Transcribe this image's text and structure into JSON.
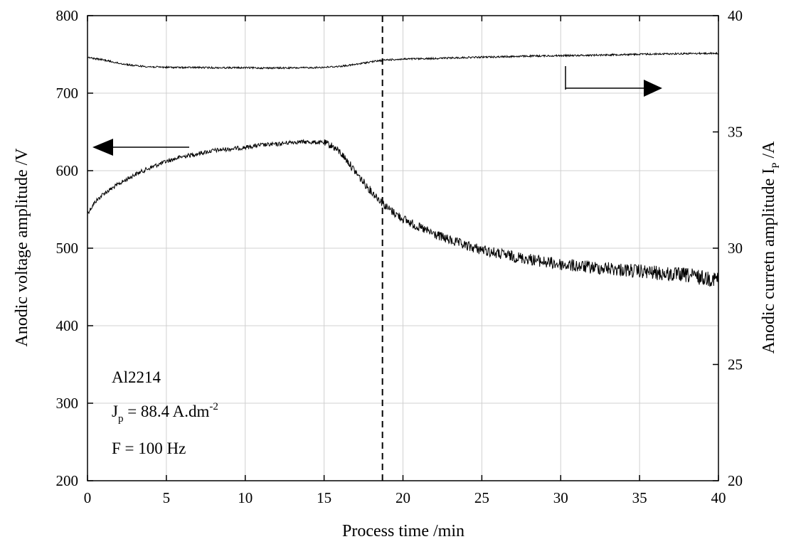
{
  "chart_data": {
    "type": "line",
    "xlabel": "Process time /min",
    "ylabel_left": "Anodic voltage amplitude /V",
    "ylabel_right": {
      "main": "Anodic curretn amplitude I",
      "sub": "P",
      "tail": " /A"
    },
    "xlim": [
      0,
      40
    ],
    "ylim_left": [
      200,
      800
    ],
    "ylim_right": [
      20,
      40
    ],
    "x_ticks": [
      "0",
      "5",
      "10",
      "15",
      "20",
      "25",
      "30",
      "35",
      "40"
    ],
    "y_left_ticks": [
      "200",
      "300",
      "400",
      "500",
      "600",
      "700",
      "800"
    ],
    "y_right_ticks": [
      "20",
      "25",
      "30",
      "35",
      "40"
    ],
    "grid": true,
    "vertical_marker_x": 18.7,
    "series": [
      {
        "axis": "left",
        "color": "#000000",
        "x": [
          0,
          0.5,
          1,
          2,
          3,
          4,
          5,
          6,
          7,
          8,
          9,
          10,
          11,
          12,
          13,
          14,
          15,
          15.5,
          16,
          16.5,
          17,
          17.5,
          18,
          18.5,
          19,
          20,
          21,
          22,
          23,
          24,
          25,
          26,
          27,
          28,
          29,
          30,
          31,
          32,
          33,
          34,
          35,
          36,
          37,
          38,
          39,
          40
        ],
        "values": [
          545,
          560,
          570,
          583,
          595,
          604,
          612,
          618,
          622,
          626,
          628,
          630,
          633,
          634,
          637,
          637,
          636,
          632,
          624,
          612,
          598,
          585,
          573,
          563,
          552,
          538,
          527,
          518,
          510,
          503,
          498,
          493,
          489,
          486,
          482,
          479,
          477,
          475,
          474,
          472,
          470,
          468,
          466,
          465,
          462,
          460
        ]
      },
      {
        "axis": "right",
        "color": "#000000",
        "x": [
          0,
          1,
          2,
          3,
          4,
          5,
          6,
          7,
          8,
          9,
          10,
          11,
          12,
          13,
          14,
          15,
          16,
          17,
          18,
          19,
          20,
          22,
          24,
          26,
          28,
          30,
          32,
          34,
          36,
          38,
          40
        ],
        "values": [
          38.2,
          38.1,
          37.95,
          37.85,
          37.8,
          37.78,
          37.77,
          37.77,
          37.76,
          37.76,
          37.76,
          37.75,
          37.75,
          37.75,
          37.76,
          37.78,
          37.82,
          37.9,
          38.02,
          38.1,
          38.13,
          38.16,
          38.2,
          38.23,
          38.26,
          38.28,
          38.3,
          38.33,
          38.35,
          38.37,
          38.38
        ]
      }
    ],
    "annotations": {
      "line1": "Al2214",
      "line2_main": "J",
      "line2_sub": "p",
      "line2_mid": " = 88.4 A.dm",
      "line2_sup": "-2",
      "line3": "F = 100 Hz"
    }
  }
}
